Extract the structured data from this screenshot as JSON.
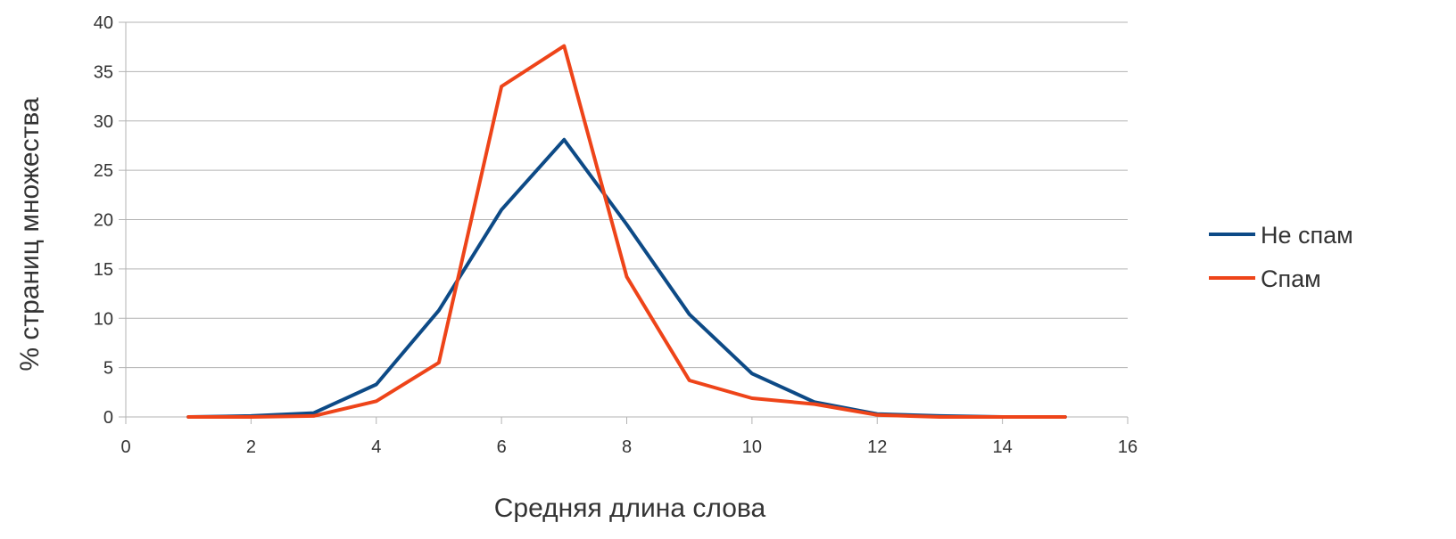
{
  "chart_data": {
    "type": "line",
    "title": "",
    "xlabel": "Средняя длина слова",
    "ylabel": "% страниц множества",
    "xlim": [
      0,
      16
    ],
    "ylim": [
      0,
      40
    ],
    "xticks": [
      0,
      2,
      4,
      6,
      8,
      10,
      12,
      14,
      16
    ],
    "yticks": [
      0,
      5,
      10,
      15,
      20,
      25,
      30,
      35,
      40
    ],
    "grid": "horizontal",
    "legend_position": "right",
    "series": [
      {
        "name": "Не спам",
        "color": "#0d4a86",
        "x": [
          1,
          2,
          3,
          4,
          5,
          6,
          7,
          8,
          9,
          10,
          11,
          12,
          13,
          14,
          15
        ],
        "y": [
          0.0,
          0.1,
          0.4,
          3.3,
          10.8,
          21.0,
          28.1,
          19.5,
          10.4,
          4.4,
          1.5,
          0.3,
          0.1,
          0.0,
          0.0
        ]
      },
      {
        "name": "Спам",
        "color": "#ee4419",
        "x": [
          1,
          2,
          3,
          4,
          5,
          6,
          7,
          8,
          9,
          10,
          11,
          12,
          13,
          14,
          15
        ],
        "y": [
          0.0,
          0.0,
          0.1,
          1.6,
          5.5,
          33.5,
          37.6,
          14.2,
          3.7,
          1.9,
          1.3,
          0.2,
          0.0,
          0.0,
          0.0
        ]
      }
    ]
  }
}
